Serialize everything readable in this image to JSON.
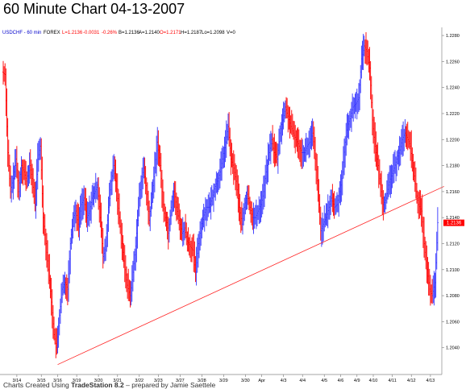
{
  "page": {
    "title": "60 Minute Chart 04-13-2007"
  },
  "chart_data": {
    "type": "bar",
    "subtype": "ohlc-hourly",
    "title": "60 Minute Chart 04-13-2007",
    "info": {
      "symbol": "USDCHF - 60 min",
      "source": "FOREX",
      "last": "L=1.2136",
      "change": "-0.0031",
      "change_pct": "-0.26%",
      "bid": "B=1.2136",
      "ask": "A=1.2140",
      "open": "O=1.2171",
      "high": "H=1.2187",
      "low": "Lo=1.2098",
      "volume": "V=0"
    },
    "last_price_label": "1.2136",
    "ylim": [
      1.202,
      1.2285
    ],
    "y_ticks": [
      "1.2040",
      "1.2060",
      "1.2080",
      "1.2100",
      "1.2120",
      "1.2140",
      "1.2160",
      "1.2180",
      "1.2200",
      "1.2220",
      "1.2240",
      "1.2260",
      "1.2280"
    ],
    "x_labels": [
      {
        "label": "3/14",
        "i": 5
      },
      {
        "label": "3/15",
        "i": 14
      },
      {
        "label": "3/16",
        "i": 20
      },
      {
        "label": "3/19",
        "i": 27
      },
      {
        "label": "3/20",
        "i": 35
      },
      {
        "label": "3/21",
        "i": 42
      },
      {
        "label": "3/22",
        "i": 50
      },
      {
        "label": "3/23",
        "i": 57
      },
      {
        "label": "3/27",
        "i": 65
      },
      {
        "label": "3/28",
        "i": 73
      },
      {
        "label": "3/29",
        "i": 81
      },
      {
        "label": "3/30",
        "i": 89
      },
      {
        "label": "Apr",
        "i": 95
      },
      {
        "label": "4/3",
        "i": 103
      },
      {
        "label": "4/4",
        "i": 110
      },
      {
        "label": "4/5",
        "i": 118
      },
      {
        "label": "4/6",
        "i": 124
      },
      {
        "label": "4/9",
        "i": 130
      },
      {
        "label": "4/10",
        "i": 136
      },
      {
        "label": "4/11",
        "i": 143
      },
      {
        "label": "4/12",
        "i": 150
      },
      {
        "label": "4/13",
        "i": 157
      }
    ],
    "closes": [
      1.2252,
      1.225,
      1.219,
      1.216,
      1.217,
      1.2185,
      1.216,
      1.218,
      1.2175,
      1.2168,
      1.218,
      1.217,
      1.215,
      1.2185,
      1.2195,
      1.214,
      1.212,
      1.21,
      1.2075,
      1.205,
      1.204,
      1.2065,
      1.2085,
      1.209,
      1.2085,
      1.212,
      1.214,
      1.2145,
      1.2135,
      1.215,
      1.2155,
      1.214,
      1.2145,
      1.2155,
      1.216,
      1.2165,
      1.214,
      1.211,
      1.2118,
      1.2148,
      1.2168,
      1.218,
      1.2162,
      1.214,
      1.212,
      1.21,
      1.2088,
      1.208,
      1.2098,
      1.2118,
      1.2148,
      1.2168,
      1.2178,
      1.2158,
      1.2138,
      1.2158,
      1.2178,
      1.2198,
      1.218,
      1.215,
      1.214,
      1.2128,
      1.2148,
      1.216,
      1.2148,
      1.2138,
      1.2128,
      1.2132,
      1.2122,
      1.2118,
      1.2115,
      1.2098,
      1.212,
      1.2132,
      1.2142,
      1.2148,
      1.2148,
      1.2155,
      1.2162,
      1.2168,
      1.2175,
      1.2185,
      1.2198,
      1.221,
      1.2185,
      1.2178,
      1.2168,
      1.2148,
      1.2135,
      1.2148,
      1.2158,
      1.2148,
      1.214,
      1.214,
      1.2145,
      1.215,
      1.216,
      1.2175,
      1.219,
      1.22,
      1.219,
      1.2185,
      1.2205,
      1.2215,
      1.2225,
      1.2218,
      1.221,
      1.2205,
      1.22,
      1.2195,
      1.219,
      1.219,
      1.2195,
      1.2198,
      1.2205,
      1.2185,
      1.216,
      1.213,
      1.2135,
      1.214,
      1.2148,
      1.2155,
      1.2148,
      1.215,
      1.216,
      1.2175,
      1.2198,
      1.2212,
      1.2218,
      1.2225,
      1.2228,
      1.2232,
      1.2262,
      1.2272,
      1.2268,
      1.2255,
      1.2215,
      1.2195,
      1.218,
      1.2165,
      1.215,
      1.2155,
      1.2165,
      1.2172,
      1.2178,
      1.2185,
      1.2192,
      1.22,
      1.2205,
      1.22,
      1.2195,
      1.2178,
      1.216,
      1.215,
      1.2145,
      1.212,
      1.21,
      1.2085,
      1.208,
      1.209,
      1.2136
    ],
    "trendline": [
      {
        "i": 20,
        "y": 1.2027
      },
      {
        "i": 162,
        "y": 1.2164
      }
    ],
    "grid": false,
    "legend": "none",
    "xlabel": "",
    "ylabel": ""
  },
  "footer": {
    "prefix": "Charts Created Using ",
    "software": "TradeStation 8.2",
    "suffix": " – prepared by Jamie Saettele"
  },
  "colors": {
    "up_bar": "#3333ff",
    "down_bar": "#ff0000",
    "trendline": "#ff2020",
    "price_box_bg": "#ff0000",
    "price_box_text": "#ffffff",
    "axis": "#888888",
    "text": "#000000",
    "info_up": "#ff0000"
  }
}
